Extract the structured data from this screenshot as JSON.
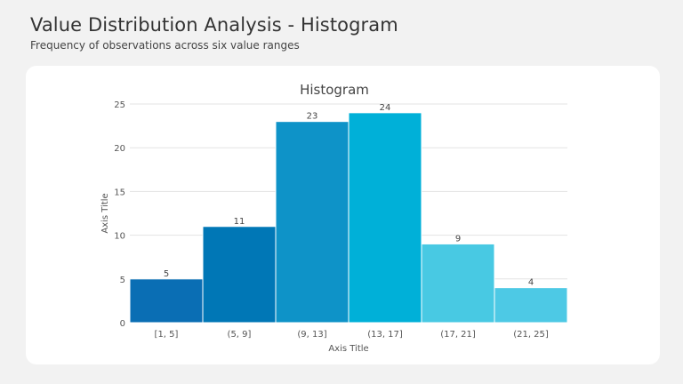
{
  "header": {
    "title": "Value Distribution Analysis - Histogram",
    "subtitle": "Frequency of observations across six value ranges"
  },
  "colors": {
    "background": "#f2f2f2",
    "card": "#ffffff",
    "gridline": "#e3e3e3",
    "bars": [
      "#0a6eb4",
      "#0077b6",
      "#0e93c8",
      "#00b0d8",
      "#48c9e3",
      "#4dc9e5"
    ]
  },
  "chart_data": {
    "type": "bar",
    "title": "Histogram",
    "xlabel": "Axis Title",
    "ylabel": "Axis Title",
    "categories": [
      "[1, 5]",
      "(5, 9]",
      "(9, 13]",
      "(13, 17]",
      "(17, 21]",
      "(21, 25]"
    ],
    "values": [
      5,
      11,
      23,
      24,
      9,
      4
    ],
    "ylim": [
      0,
      25
    ],
    "yticks": [
      0,
      5,
      10,
      15,
      20,
      25
    ],
    "grid": true,
    "data_labels": true
  }
}
